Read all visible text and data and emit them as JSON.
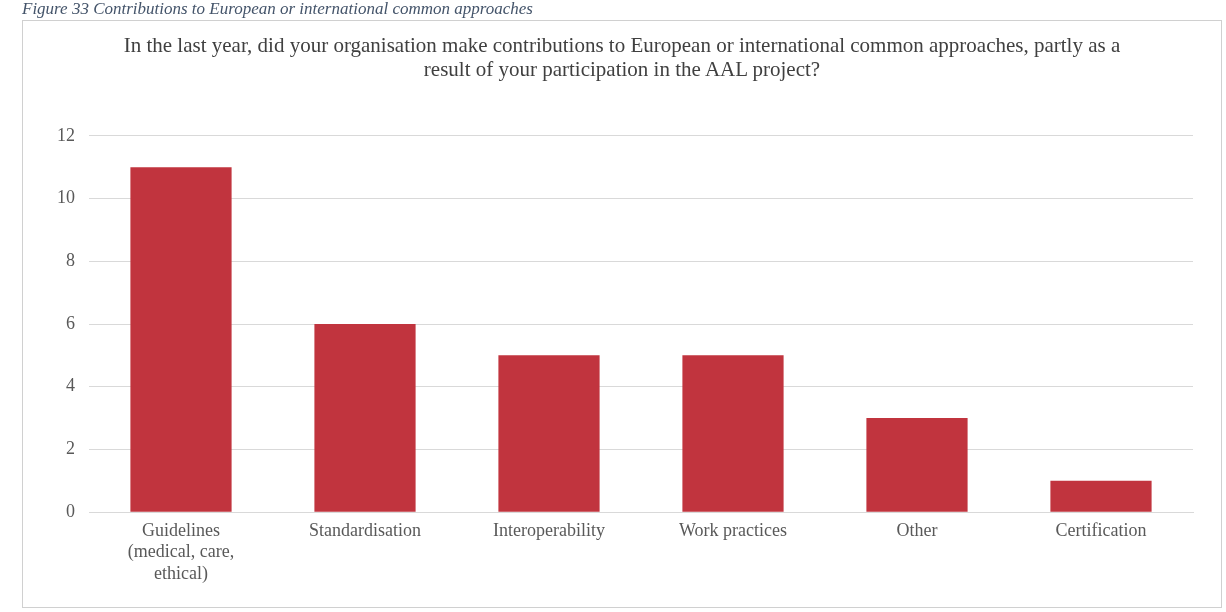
{
  "chart_data": {
    "type": "bar",
    "title": "In the last year, did your organisation make contributions to European or international common approaches, partly as a result of your participation in the AAL project?",
    "annotations": [
      "Figure 33 Contributions to European or international common approaches"
    ],
    "categories": [
      "Guidelines (medical, care, ethical)",
      "Standardisation",
      "Interoperability",
      "Work practices",
      "Other",
      "Certification"
    ],
    "values": [
      11,
      6,
      5,
      5,
      3,
      1
    ],
    "color": "#c1343e",
    "ylim": [
      0,
      12
    ],
    "yticks": [
      0,
      2,
      4,
      6,
      8,
      10,
      12
    ],
    "grid": "y",
    "legend": false
  }
}
